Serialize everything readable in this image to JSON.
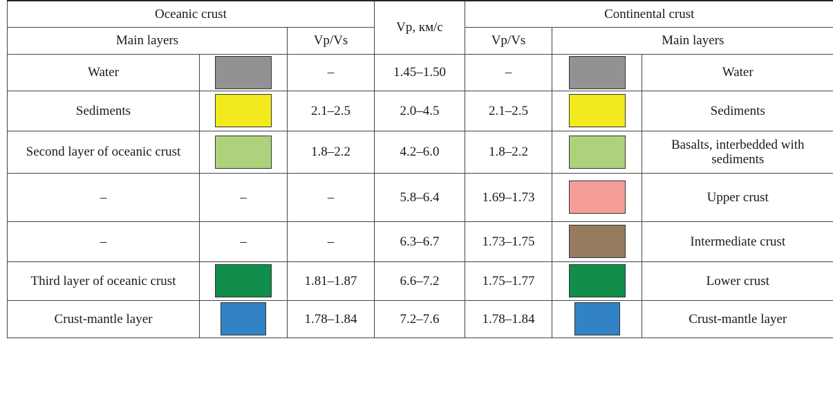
{
  "header": {
    "oceanic": "Oceanic crust",
    "vp": "Vp, км/с",
    "continental": "Continental crust",
    "main_layers": "Main layers",
    "vpvs_left": "Vp/Vs",
    "vpvs_right": "Vp/Vs",
    "main_layers_right": "Main layers"
  },
  "rows": [
    {
      "oc_name": "Water",
      "oc_color": "#929292",
      "oc_vpvs": "–",
      "vp": "1.45–1.50",
      "cc_vpvs": "–",
      "cc_color": "#929292",
      "cc_name": "Water"
    },
    {
      "oc_name": "Sediments",
      "oc_color": "#f2ea1c",
      "oc_vpvs": "2.1–2.5",
      "vp": "2.0–4.5",
      "cc_vpvs": "2.1–2.5",
      "cc_color": "#f2ea1c",
      "cc_name": "Sediments"
    },
    {
      "oc_name": "Second layer of oceanic crust",
      "oc_color": "#acd37b",
      "oc_vpvs": "1.8–2.2",
      "vp": "4.2–6.0",
      "cc_vpvs": "1.8–2.2",
      "cc_color": "#acd37b",
      "cc_name": "Basalts, interbedded with sediments"
    },
    {
      "oc_name": "–",
      "oc_color": "",
      "oc_swatch_text": "–",
      "oc_vpvs": "–",
      "vp": "5.8–6.4",
      "cc_vpvs": "1.69–1.73",
      "cc_color": "#f59d97",
      "cc_name": "Upper crust"
    },
    {
      "oc_name": "–",
      "oc_color": "",
      "oc_swatch_text": "–",
      "oc_vpvs": "–",
      "vp": "6.3–6.7",
      "cc_vpvs": "1.73–1.75",
      "cc_color": "#977b5f",
      "cc_name": "Intermediate crust"
    },
    {
      "oc_name": "Third layer of oceanic crust",
      "oc_color": "#108d48",
      "oc_vpvs": "1.81–1.87",
      "vp": "6.6–7.2",
      "cc_vpvs": "1.75–1.77",
      "cc_color": "#108d48",
      "cc_name": "Lower crust"
    },
    {
      "oc_name": "Crust-mantle layer",
      "oc_color": "#3183c6",
      "oc_vpvs": "1.78–1.84",
      "vp": "7.2–7.6",
      "cc_vpvs": "1.78–1.84",
      "cc_color": "#3183c6",
      "cc_name": "Crust-mantle layer"
    }
  ]
}
